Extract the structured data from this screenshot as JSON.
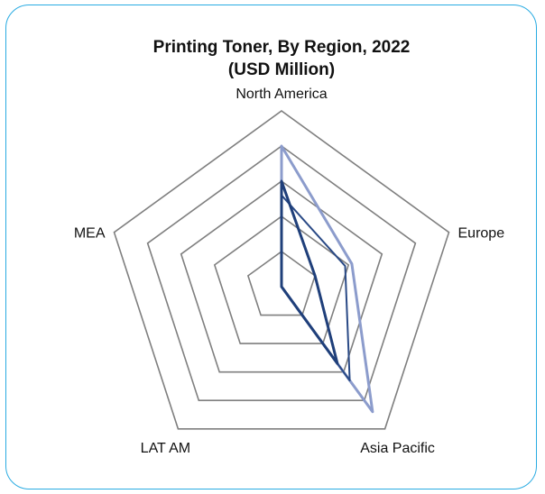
{
  "chart_data": {
    "type": "radar",
    "title_line1": "Printing Toner, By Region, 2022",
    "title_line2": "(USD Million)",
    "categories": [
      "North America",
      "Europe",
      "Asia Pacific",
      "LAT AM",
      "MEA"
    ],
    "rlim": [
      0,
      5
    ],
    "rings": 5,
    "grid": true,
    "series": [
      {
        "values": [
          4.0,
          2.1,
          4.4,
          0.0,
          0.0
        ],
        "color": "#8c9ccc"
      },
      {
        "values": [
          2.6,
          1.9,
          3.3,
          0.0,
          0.0
        ],
        "color": "#2a4a86"
      },
      {
        "values": [
          3.0,
          1.0,
          2.7,
          0.0,
          0.0
        ],
        "color": "#1f3f7a"
      }
    ]
  },
  "colors": {
    "frame_border": "#29abe2",
    "grid": "#7f7f7f"
  }
}
